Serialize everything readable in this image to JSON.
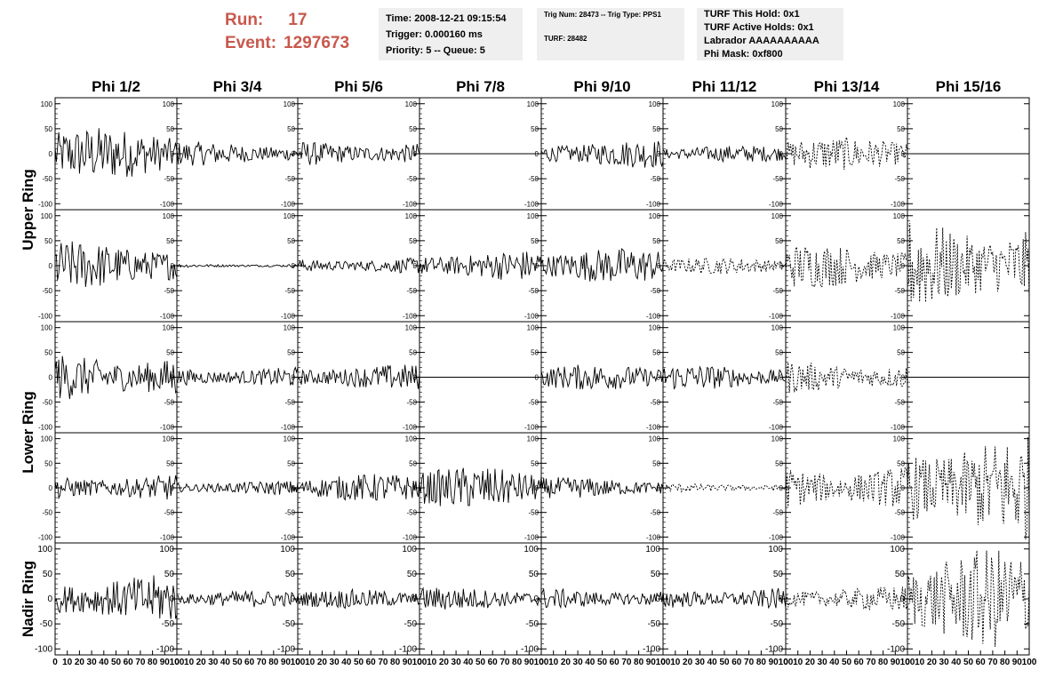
{
  "header": {
    "run_label": "Run:",
    "run_value": "17",
    "event_label": "Event:",
    "event_value": "1297673",
    "time": "Time: 2008-12-21 09:15:54",
    "trigger": "Trigger: 0.000160 ms",
    "priority": "Priority: 5 -- Queue: 5",
    "trig_num": "Trig Num: 28473 -- Trig Type: PPS1",
    "turf": "TURF: 28482",
    "turf_this_hold": "TURF This Hold: 0x1",
    "turf_active_holds": "TURF Active Holds: 0x1",
    "labrador": "Labrador AAAAAAAAAA",
    "phi_mask": "Phi Mask: 0xf800"
  },
  "chart_data": {
    "type": "line",
    "columns": [
      "Phi 1/2",
      "Phi 3/4",
      "Phi 5/6",
      "Phi 7/8",
      "Phi 9/10",
      "Phi 11/12",
      "Phi 13/14",
      "Phi 15/16"
    ],
    "ring_labels": [
      "Upper Ring",
      "Lower Ring",
      "Nadir Ring"
    ],
    "y_ticks": [
      "100",
      "50",
      "0",
      "-50",
      "-100"
    ],
    "x_ticks": [
      "0",
      "10",
      "20",
      "30",
      "40",
      "50",
      "60",
      "70",
      "80",
      "90",
      "100"
    ],
    "ylim": [
      -112,
      112
    ],
    "xlim": [
      0,
      100
    ],
    "panels": [
      [
        {
          "amp": 45,
          "style": "solid"
        },
        {
          "amp": 20,
          "style": "solid"
        },
        {
          "amp": 22,
          "style": "solid"
        },
        {
          "amp": 0,
          "style": "flat"
        },
        {
          "amp": 24,
          "style": "solid"
        },
        {
          "amp": 14,
          "style": "solid"
        },
        {
          "amp": 28,
          "style": "dashed"
        },
        {
          "amp": 0,
          "style": "flat"
        }
      ],
      [
        {
          "amp": 42,
          "style": "solid"
        },
        {
          "amp": 3,
          "style": "solid"
        },
        {
          "amp": 14,
          "style": "solid"
        },
        {
          "amp": 26,
          "style": "solid"
        },
        {
          "amp": 30,
          "style": "solid"
        },
        {
          "amp": 14,
          "style": "dashed"
        },
        {
          "amp": 38,
          "style": "dashed"
        },
        {
          "amp": 80,
          "style": "dashed"
        }
      ],
      [
        {
          "amp": 42,
          "style": "solid"
        },
        {
          "amp": 18,
          "style": "solid"
        },
        {
          "amp": 22,
          "style": "solid"
        },
        {
          "amp": 0,
          "style": "flat"
        },
        {
          "amp": 22,
          "style": "solid"
        },
        {
          "amp": 22,
          "style": "solid"
        },
        {
          "amp": 28,
          "style": "dashed"
        },
        {
          "amp": 0,
          "style": "flat"
        }
      ],
      [
        {
          "amp": 24,
          "style": "solid"
        },
        {
          "amp": 12,
          "style": "solid"
        },
        {
          "amp": 24,
          "style": "solid"
        },
        {
          "amp": 36,
          "style": "solid"
        },
        {
          "amp": 18,
          "style": "solid"
        },
        {
          "amp": 8,
          "style": "dashed"
        },
        {
          "amp": 40,
          "style": "dashed"
        },
        {
          "amp": 90,
          "style": "dashed"
        }
      ],
      [
        {
          "amp": 40,
          "style": "solid"
        },
        {
          "amp": 14,
          "style": "solid"
        },
        {
          "amp": 16,
          "style": "solid"
        },
        {
          "amp": 20,
          "style": "solid"
        },
        {
          "amp": 18,
          "style": "solid"
        },
        {
          "amp": 20,
          "style": "solid"
        },
        {
          "amp": 22,
          "style": "dashed"
        },
        {
          "amp": 85,
          "style": "dashed"
        }
      ]
    ]
  }
}
